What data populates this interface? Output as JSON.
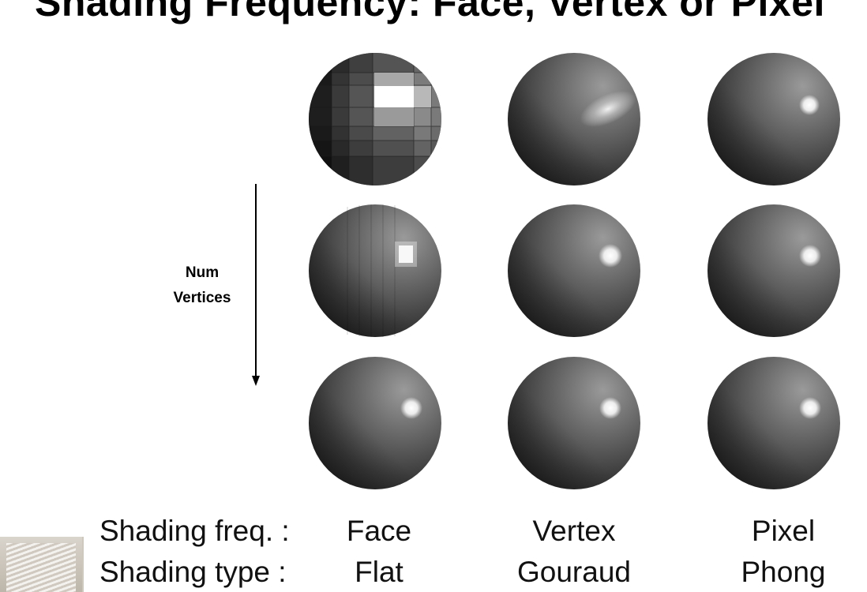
{
  "slide": {
    "title": "Shading Frequency: Face, Vertex or Pixel",
    "axis_label_line1": "Num",
    "axis_label_line2": "Vertices",
    "row_labels": {
      "frequency": "Shading freq. :",
      "type": "Shading type :"
    },
    "columns": [
      {
        "frequency": "Face",
        "type": "Flat"
      },
      {
        "frequency": "Vertex",
        "type": "Gouraud"
      },
      {
        "frequency": "Pixel",
        "type": "Phong"
      }
    ]
  },
  "colors": {
    "sphere_dark": "#1a1a1a",
    "sphere_mid": "#555555",
    "sphere_light": "#8a8a8a",
    "highlight": "#ffffff",
    "text": "#111111"
  }
}
